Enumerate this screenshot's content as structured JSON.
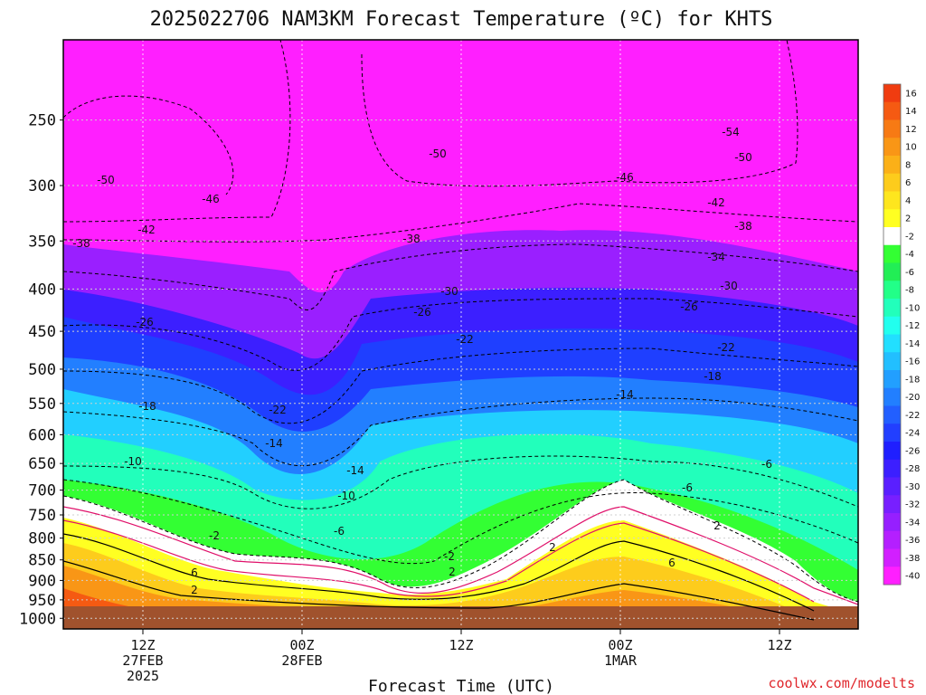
{
  "chart_data": {
    "type": "heatmap",
    "title": "2025022706 NAM3KM Forecast Temperature (ºC) for KHTS",
    "xlabel": "Forecast Time (UTC)",
    "ylabel": "",
    "credit": "coolwx.com/modelts",
    "y_scale": "log-pressure",
    "y_ticks": [
      "250",
      "300",
      "350",
      "400",
      "450",
      "500",
      "550",
      "600",
      "650",
      "700",
      "750",
      "800",
      "850",
      "900",
      "950",
      "1000"
    ],
    "x_ticks": [
      {
        "line1": "12Z",
        "line2": "27FEB",
        "line3": "2025"
      },
      {
        "line1": "00Z",
        "line2": "28FEB",
        "line3": ""
      },
      {
        "line1": "12Z",
        "line2": "",
        "line3": ""
      },
      {
        "line1": "00Z",
        "line2": "1MAR",
        "line3": ""
      },
      {
        "line1": "12Z",
        "line2": "",
        "line3": ""
      }
    ],
    "grid": true,
    "legend_placement": "right",
    "colorbar_labels": [
      "16",
      "14",
      "12",
      "10",
      "8",
      "6",
      "4",
      "2",
      "-2",
      "-4",
      "-6",
      "-8",
      "-10",
      "-12",
      "-14",
      "-16",
      "-18",
      "-20",
      "-22",
      "-24",
      "-26",
      "-28",
      "-30",
      "-32",
      "-34",
      "-36",
      "-38",
      "-40"
    ],
    "colorbar_colors": [
      "#f03c10",
      "#f55a12",
      "#f77a14",
      "#f99616",
      "#fbb018",
      "#fdcc1c",
      "#fee61e",
      "#ffff22",
      "#ffffff",
      "#33ff33",
      "#22ee55",
      "#22ff88",
      "#22ffbb",
      "#22ffee",
      "#22dfff",
      "#22bfff",
      "#229fff",
      "#227fff",
      "#225fff",
      "#223fff",
      "#1f1fff",
      "#3c1fff",
      "#5a1fff",
      "#781fff",
      "#961fff",
      "#b41fff",
      "#d21fff",
      "#ff1fff"
    ],
    "contour_labels": [
      "-54",
      "-50",
      "-50",
      "-50",
      "-46",
      "-46",
      "-42",
      "-42",
      "-38",
      "-38",
      "-38",
      "-34",
      "-30",
      "-30",
      "-26",
      "-26",
      "-26",
      "-22",
      "-22",
      "-22",
      "-18",
      "-18",
      "-14",
      "-14",
      "-14",
      "-10",
      "-10",
      "-6",
      "-6",
      "-6",
      "-2",
      "-2",
      "2",
      "2",
      "6",
      "6",
      "2",
      "2"
    ],
    "ground_color": "#a0522d"
  }
}
